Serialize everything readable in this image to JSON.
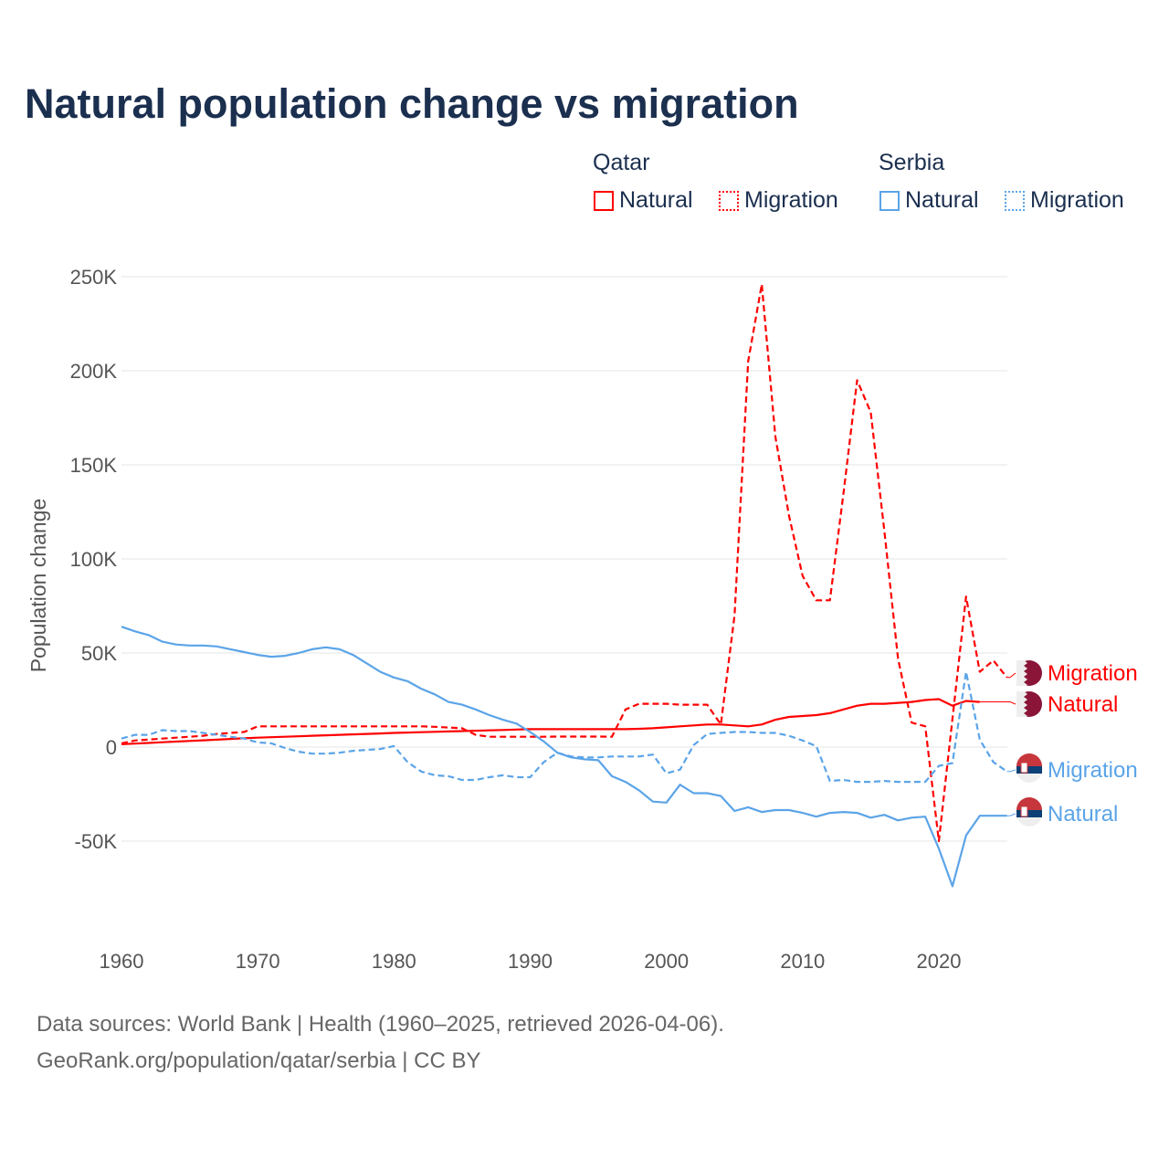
{
  "title": "Natural population change vs migration",
  "legend": {
    "groups": [
      {
        "name": "Qatar",
        "items": [
          "Natural",
          "Migration"
        ],
        "color": "#ff0000"
      },
      {
        "name": "Serbia",
        "items": [
          "Natural",
          "Migration"
        ],
        "color": "#5ba4e8"
      }
    ]
  },
  "footer": {
    "line1": "Data sources: World Bank | Health (1960–2025, retrieved 2026-04-06).",
    "line2": "GeoRank.org/population/qatar/serbia | CC BY"
  },
  "chart_data": {
    "type": "line",
    "title": "Natural population change vs migration",
    "xlabel": "",
    "ylabel": "Population change",
    "xlim": [
      1960,
      2025
    ],
    "ylim": [
      -97000,
      255000
    ],
    "x_ticks": [
      1960,
      1970,
      1980,
      1990,
      2000,
      2010,
      2020
    ],
    "x_tick_labels": [
      "1960",
      "1970",
      "1980",
      "1990",
      "2000",
      "2010",
      "2020"
    ],
    "y_ticks": [
      -50000,
      0,
      50000,
      100000,
      150000,
      200000,
      250000
    ],
    "y_tick_labels": [
      "-50K",
      "0",
      "50K",
      "100K",
      "150K",
      "200K",
      "250K"
    ],
    "grid": true,
    "legend_position": "top-right",
    "x_start": 1960,
    "series": [
      {
        "name": "Qatar Natural",
        "label": "Natural",
        "country": "Qatar",
        "style": "solid",
        "color": "#ff0000",
        "values": [
          1500,
          1850,
          2200,
          2550,
          2900,
          3250,
          3600,
          3950,
          4300,
          4650,
          5000,
          5250,
          5500,
          5750,
          6000,
          6250,
          6500,
          6750,
          7000,
          7250,
          7500,
          7700,
          7900,
          8100,
          8300,
          8500,
          8700,
          8900,
          9100,
          9300,
          9500,
          9500,
          9500,
          9500,
          9500,
          9500,
          9500,
          9500,
          9700,
          10000,
          10500,
          11000,
          11500,
          12000,
          12000,
          11500,
          11000,
          12000,
          14500,
          16000,
          16500,
          17000,
          18000,
          20000,
          22000,
          23000,
          23000,
          23500,
          24000,
          25000,
          25500,
          22000,
          24500,
          24000
        ]
      },
      {
        "name": "Qatar Migration",
        "label": "Migration",
        "country": "Qatar",
        "style": "dashed",
        "color": "#ff0000",
        "values": [
          2000,
          3500,
          4000,
          4500,
          5000,
          5500,
          6000,
          7000,
          7500,
          8000,
          11000,
          11000,
          11000,
          11000,
          11000,
          11000,
          11000,
          11000,
          11000,
          11000,
          11000,
          11000,
          11000,
          10800,
          10400,
          10000,
          6500,
          5500,
          5500,
          5500,
          5500,
          5500,
          5600,
          5600,
          5600,
          5600,
          5500,
          20000,
          23000,
          23000,
          23000,
          22500,
          22500,
          22500,
          12000,
          70000,
          205000,
          246000,
          165000,
          123000,
          91000,
          78000,
          78000,
          135000,
          195000,
          178000,
          115000,
          47000,
          13000,
          11000,
          -50000,
          15000,
          80000,
          40000,
          46000,
          37000
        ]
      },
      {
        "name": "Serbia Natural",
        "label": "Natural",
        "country": "Serbia",
        "style": "solid",
        "color": "#5ba4e8",
        "values": [
          64000,
          61500,
          59500,
          56000,
          54500,
          54000,
          54000,
          53500,
          52000,
          50500,
          49000,
          48000,
          48500,
          50000,
          52000,
          53000,
          52000,
          49000,
          44500,
          40000,
          37000,
          35000,
          31000,
          28000,
          24000,
          22500,
          20000,
          17000,
          14500,
          12500,
          8000,
          3000,
          -3000,
          -5500,
          -6500,
          -7000,
          -15500,
          -18500,
          -23000,
          -29000,
          -29500,
          -20000,
          -24500,
          -24500,
          -26000,
          -34000,
          -32000,
          -34500,
          -33500,
          -33500,
          -35000,
          -37000,
          -35000,
          -34500,
          -35000,
          -37500,
          -36000,
          -39000,
          -37500,
          -37000,
          -54000,
          -74000,
          -47000,
          -36500,
          -36500,
          -36500
        ]
      },
      {
        "name": "Serbia Migration",
        "label": "Migration",
        "country": "Serbia",
        "style": "dashed",
        "color": "#5ba4e8",
        "values": [
          4500,
          6500,
          6500,
          9000,
          8500,
          8500,
          7500,
          6500,
          5500,
          4500,
          2500,
          2000,
          -500,
          -2500,
          -3500,
          -3500,
          -3000,
          -2000,
          -1500,
          -1000,
          500,
          -8000,
          -13000,
          -15000,
          -15500,
          -17500,
          -17500,
          -16000,
          -15000,
          -16000,
          -16000,
          -8000,
          -3000,
          -5000,
          -5500,
          -5500,
          -5000,
          -5000,
          -5000,
          -4000,
          -14000,
          -12000,
          1000,
          7000,
          7500,
          8000,
          8000,
          7500,
          7500,
          6000,
          3500,
          500,
          -18000,
          -17500,
          -18500,
          -18500,
          -18000,
          -18500,
          -18500,
          -18500,
          -10000,
          -8500,
          40000,
          4000,
          -8000,
          -13000
        ]
      }
    ]
  }
}
